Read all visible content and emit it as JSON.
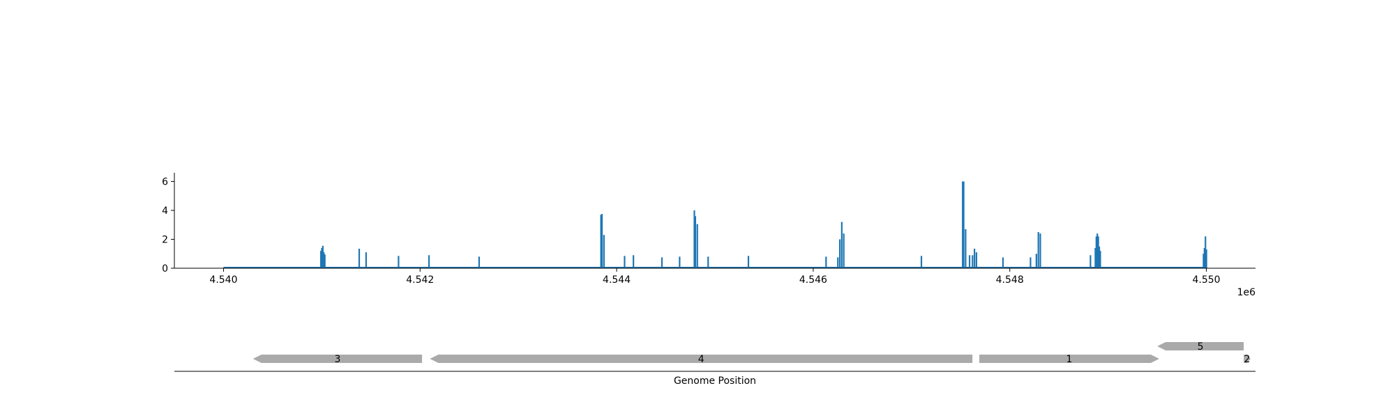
{
  "chart_data": [
    {
      "type": "bar",
      "title": "",
      "xlabel": "",
      "ylabel": "",
      "xlim": [
        4539500,
        4550500
      ],
      "ylim": [
        0,
        6.6
      ],
      "x_offset_label": "1e6",
      "x_ticks": [
        4540000,
        4542000,
        4544000,
        4546000,
        4548000,
        4550000
      ],
      "x_tick_labels": [
        "4.540",
        "4.542",
        "4.544",
        "4.546",
        "4.548",
        "4.550"
      ],
      "y_ticks": [
        0,
        2,
        4,
        6
      ],
      "y_tick_labels": [
        "0",
        "2",
        "4",
        "6"
      ],
      "grid": false,
      "color": "#1f77b4",
      "baseline": {
        "x_start": 4540000,
        "x_end": 4550000,
        "value": 0.04
      },
      "points": [
        {
          "x": 4540990,
          "y": 1.2
        },
        {
          "x": 4541000,
          "y": 1.4
        },
        {
          "x": 4541010,
          "y": 1.55
        },
        {
          "x": 4541020,
          "y": 1.1
        },
        {
          "x": 4541030,
          "y": 0.95
        },
        {
          "x": 4541380,
          "y": 1.35
        },
        {
          "x": 4541450,
          "y": 1.1
        },
        {
          "x": 4541780,
          "y": 0.85
        },
        {
          "x": 4542090,
          "y": 0.9
        },
        {
          "x": 4542600,
          "y": 0.8
        },
        {
          "x": 4543840,
          "y": 3.7
        },
        {
          "x": 4543850,
          "y": 3.75
        },
        {
          "x": 4543870,
          "y": 2.3
        },
        {
          "x": 4544080,
          "y": 0.85
        },
        {
          "x": 4544170,
          "y": 0.9
        },
        {
          "x": 4544460,
          "y": 0.75
        },
        {
          "x": 4544640,
          "y": 0.8
        },
        {
          "x": 4544790,
          "y": 4.0
        },
        {
          "x": 4544800,
          "y": 3.6
        },
        {
          "x": 4544820,
          "y": 3.05
        },
        {
          "x": 4544930,
          "y": 0.8
        },
        {
          "x": 4545340,
          "y": 0.85
        },
        {
          "x": 4546130,
          "y": 0.8
        },
        {
          "x": 4546250,
          "y": 0.75
        },
        {
          "x": 4546270,
          "y": 2.0
        },
        {
          "x": 4546290,
          "y": 3.2
        },
        {
          "x": 4546310,
          "y": 2.4
        },
        {
          "x": 4547100,
          "y": 0.85
        },
        {
          "x": 4547520,
          "y": 6.0
        },
        {
          "x": 4547530,
          "y": 6.0
        },
        {
          "x": 4547550,
          "y": 2.7
        },
        {
          "x": 4547590,
          "y": 0.9
        },
        {
          "x": 4547620,
          "y": 0.9
        },
        {
          "x": 4547640,
          "y": 1.35
        },
        {
          "x": 4547660,
          "y": 1.1
        },
        {
          "x": 4547930,
          "y": 0.75
        },
        {
          "x": 4548210,
          "y": 0.75
        },
        {
          "x": 4548270,
          "y": 1.0
        },
        {
          "x": 4548290,
          "y": 2.5
        },
        {
          "x": 4548310,
          "y": 2.4
        },
        {
          "x": 4548820,
          "y": 0.9
        },
        {
          "x": 4548870,
          "y": 1.4
        },
        {
          "x": 4548880,
          "y": 2.2
        },
        {
          "x": 4548890,
          "y": 2.4
        },
        {
          "x": 4548900,
          "y": 2.2
        },
        {
          "x": 4548910,
          "y": 1.5
        },
        {
          "x": 4548920,
          "y": 1.2
        },
        {
          "x": 4549970,
          "y": 1.0
        },
        {
          "x": 4549980,
          "y": 1.4
        },
        {
          "x": 4549990,
          "y": 2.2
        },
        {
          "x": 4550000,
          "y": 1.3
        }
      ]
    },
    {
      "type": "gene_track",
      "xlabel": "Genome Position",
      "xlim": [
        4539500,
        4550500
      ],
      "gene_color": "#aaaaaa",
      "genes": [
        {
          "label": "3",
          "start": 4540300,
          "end": 4542020,
          "strand": "-",
          "row": 0
        },
        {
          "label": "4",
          "start": 4542100,
          "end": 4547620,
          "strand": "-",
          "row": 0
        },
        {
          "label": "1",
          "start": 4547690,
          "end": 4549520,
          "strand": "+",
          "row": 0
        },
        {
          "label": "5",
          "start": 4549500,
          "end": 4550380,
          "strand": "-",
          "row": 1
        },
        {
          "label": "2",
          "start": 4550380,
          "end": 4550450,
          "strand": "+",
          "row": 0
        }
      ]
    }
  ]
}
